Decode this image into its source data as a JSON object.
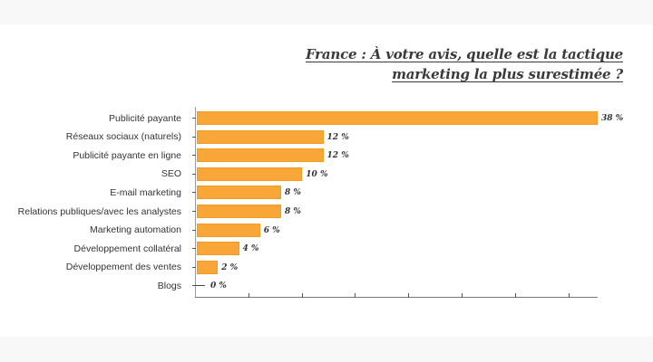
{
  "title": {
    "line1": "France : À votre avis, quelle est la tactique",
    "line2": "marketing la plus surestimée ?"
  },
  "chart_data": {
    "type": "bar",
    "orientation": "horizontal",
    "title": "France : À votre avis, quelle est la tactique marketing la plus surestimée ?",
    "xlabel": "",
    "ylabel": "",
    "categories": [
      "Publicité payante",
      "Réseaux sociaux (naturels)",
      "Publicité payante en ligne",
      "SEO",
      "E-mail marketing",
      "Relations publiques/avec les analystes",
      "Marketing automation",
      "Développement collatéral",
      "Développement des ventes",
      "Blogs"
    ],
    "values": [
      38,
      12,
      12,
      10,
      8,
      8,
      6,
      4,
      2,
      0
    ],
    "value_labels": [
      "38 %",
      "12 %",
      "12 %",
      "10 %",
      "8 %",
      "8 %",
      "6 %",
      "4 %",
      "2 %",
      "0 %"
    ],
    "unit": "%",
    "xlim": [
      0,
      38
    ],
    "x_tick_step": 5,
    "x_tick_labels_visible": false,
    "grid": false,
    "legend": "none",
    "bar_color": "#f7a637"
  }
}
